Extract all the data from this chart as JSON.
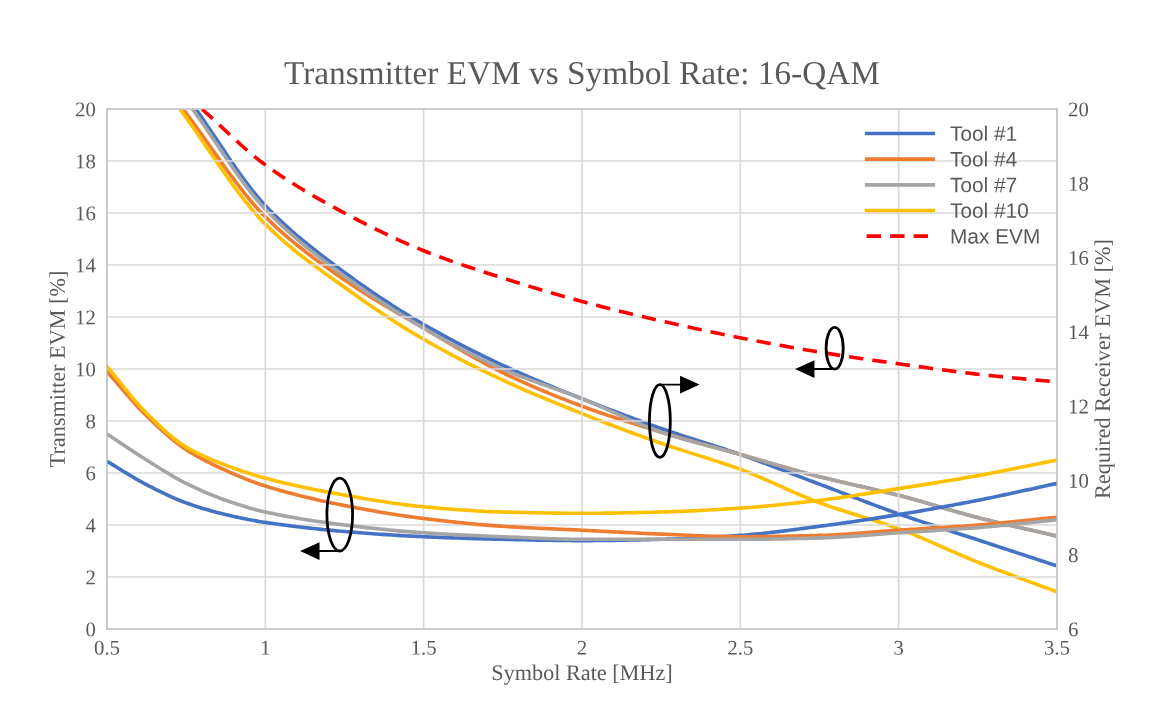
{
  "chart_data": {
    "type": "line",
    "title": "Transmitter EVM vs Symbol Rate: 16-QAM",
    "xlabel": "Symbol Rate [MHz]",
    "ylabel": "Transmitter EVM [%]",
    "y2label": "Required Receiver EVM [%]",
    "xlim": [
      0.5,
      3.5
    ],
    "xticks": [
      0.5,
      1,
      1.5,
      2,
      2.5,
      3,
      3.5
    ],
    "ylim": [
      0,
      20
    ],
    "yticks": [
      0,
      2,
      4,
      6,
      8,
      10,
      12,
      14,
      16,
      18,
      20
    ],
    "y2lim": [
      6,
      20
    ],
    "y2ticks": [
      6,
      8,
      10,
      12,
      14,
      16,
      18,
      20
    ],
    "grid": true,
    "legend": "top right",
    "marker": "none",
    "series": [
      {
        "name": "Tool #1",
        "color": "#4472c4",
        "x": [
          0.5,
          0.625,
          0.75,
          0.875,
          1,
          1.25,
          1.5,
          1.75,
          2,
          2.25,
          2.5,
          2.75,
          3,
          3.25,
          3.5
        ],
        "values": [
          6.45,
          5.55,
          4.85,
          4.4,
          4.1,
          3.75,
          3.55,
          3.45,
          3.4,
          3.45,
          3.6,
          3.95,
          4.4,
          4.95,
          5.6
        ]
      },
      {
        "name": "Tool #4",
        "color": "#ed7d31",
        "x": [
          0.5,
          0.625,
          0.75,
          0.875,
          1,
          1.25,
          1.5,
          1.75,
          2,
          2.25,
          2.5,
          2.75,
          3,
          3.25,
          3.5
        ],
        "values": [
          9.9,
          8.2,
          6.9,
          6.1,
          5.5,
          4.75,
          4.25,
          3.95,
          3.8,
          3.65,
          3.55,
          3.6,
          3.8,
          4.0,
          4.3
        ]
      },
      {
        "name": "Tool #7",
        "color": "#a5a5a5",
        "x": [
          0.5,
          0.625,
          0.75,
          0.875,
          1,
          1.25,
          1.5,
          1.75,
          2,
          2.25,
          2.5,
          2.75,
          3,
          3.25,
          3.5
        ],
        "values": [
          7.5,
          6.5,
          5.6,
          4.95,
          4.5,
          4.0,
          3.7,
          3.55,
          3.45,
          3.45,
          3.45,
          3.5,
          3.7,
          3.9,
          4.2
        ]
      },
      {
        "name": "Tool #10",
        "color": "#ffc000",
        "x": [
          0.5,
          0.625,
          0.75,
          0.875,
          1,
          1.25,
          1.5,
          1.75,
          2,
          2.25,
          2.5,
          2.75,
          3,
          3.25,
          3.5
        ],
        "values": [
          10.1,
          8.3,
          7.0,
          6.3,
          5.8,
          5.15,
          4.7,
          4.5,
          4.45,
          4.5,
          4.65,
          4.95,
          5.4,
          5.9,
          6.5
        ]
      },
      {
        "name": "Max EVM",
        "color": "#ff0000",
        "line_style": "dashed",
        "x": [
          0.8,
          1,
          1.25,
          1.5,
          1.75,
          2,
          2.25,
          2.5,
          2.75,
          3,
          3.25,
          3.5
        ],
        "values": [
          20,
          17.85,
          16.0,
          14.55,
          13.5,
          12.6,
          11.85,
          11.2,
          10.65,
          10.2,
          9.8,
          9.5
        ]
      },
      {
        "color": "#4472c4",
        "axis": "y2",
        "x": [
          0.78,
          1,
          1.25,
          1.5,
          1.75,
          2,
          2.25,
          2.5,
          2.75,
          3,
          3.25,
          3.5
        ],
        "values": [
          20,
          17.4,
          15.6,
          14.2,
          13.1,
          12.2,
          11.4,
          10.7,
          9.9,
          9.1,
          8.4,
          7.7
        ]
      },
      {
        "color": "#ed7d31",
        "axis": "y2",
        "x": [
          0.74,
          1,
          1.25,
          1.5,
          1.75,
          2,
          2.25,
          2.5,
          2.75,
          3,
          3.25,
          3.5
        ],
        "values": [
          20,
          17.1,
          15.4,
          14.1,
          12.9,
          12.0,
          11.3,
          10.7,
          10.1,
          9.6,
          9.0,
          8.5
        ]
      },
      {
        "color": "#a5a5a5",
        "axis": "y2",
        "x": [
          0.77,
          1,
          1.25,
          1.5,
          1.75,
          2,
          2.25,
          2.5,
          2.75,
          3,
          3.25,
          3.5
        ],
        "values": [
          20,
          17.3,
          15.5,
          14.1,
          13.0,
          12.2,
          11.3,
          10.7,
          10.1,
          9.6,
          9.0,
          8.5
        ]
      },
      {
        "color": "#ffc000",
        "axis": "y2",
        "x": [
          0.73,
          1,
          1.25,
          1.5,
          1.75,
          2,
          2.25,
          2.5,
          2.75,
          3,
          3.25,
          3.5
        ],
        "values": [
          20,
          16.9,
          15.2,
          13.8,
          12.7,
          11.8,
          11.0,
          10.3,
          9.4,
          8.7,
          7.8,
          7.0
        ]
      }
    ]
  }
}
